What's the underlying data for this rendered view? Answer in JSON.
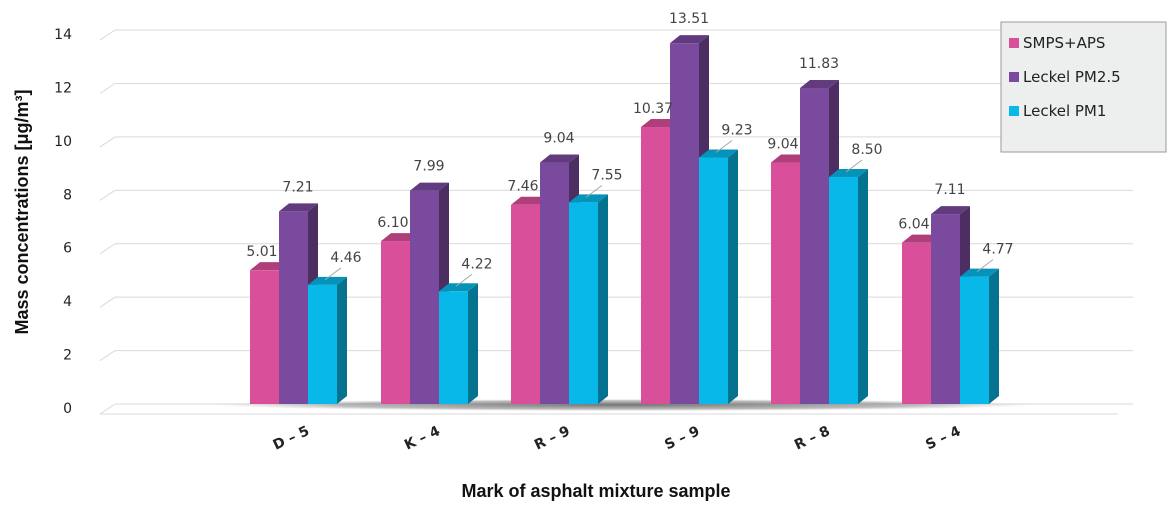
{
  "chart_data": {
    "type": "bar",
    "xlabel": "Mark of asphalt mixture sample",
    "ylabel": "Mass concentrations [μg/m³]",
    "ylim": [
      0,
      14
    ],
    "yticks": [
      0,
      2,
      4,
      6,
      8,
      10,
      12,
      14
    ],
    "grid": true,
    "legend_position": "top-right",
    "categories": [
      "D – 5",
      "K – 4",
      "R – 9",
      "S – 9",
      "R – 8",
      "S – 4"
    ],
    "series": [
      {
        "name": "SMPS+APS",
        "color": "#D94F9A",
        "values": [
          5.01,
          6.1,
          7.46,
          10.37,
          9.04,
          6.04
        ],
        "labels": [
          "5.01",
          "6.10",
          "7.46",
          "10.37",
          "9.04",
          "6.04"
        ]
      },
      {
        "name": "Leckel PM2.5",
        "color": "#7A4A9E",
        "values": [
          7.21,
          7.99,
          9.04,
          13.51,
          11.83,
          7.11
        ],
        "labels": [
          "7.21",
          "7.99",
          "9.04",
          "13.51",
          "11.83",
          "7.11"
        ]
      },
      {
        "name": "Leckel PM1",
        "color": "#08B8E8",
        "values": [
          4.46,
          4.22,
          7.55,
          9.23,
          8.5,
          4.77
        ],
        "labels": [
          "4.46",
          "4.22",
          "7.55",
          "9.23",
          "8.50",
          "4.77"
        ]
      }
    ]
  }
}
